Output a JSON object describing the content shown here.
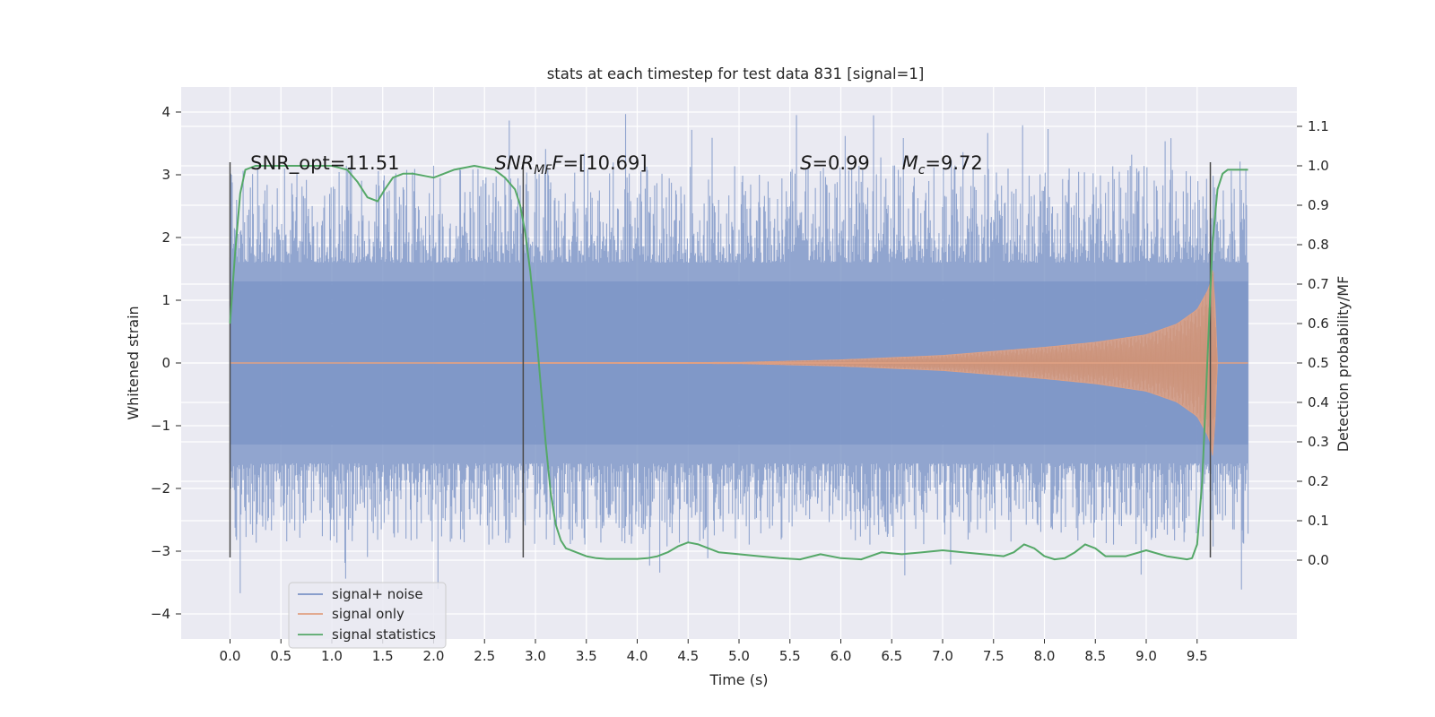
{
  "chart_data": {
    "type": "line",
    "title": "stats at each timestep for test data 831 [signal=1]",
    "xlabel": "Time (s)",
    "ylabel": "Whitened strain",
    "y2label": "Detection probability/MF",
    "xlim": [
      -0.48,
      10.48
    ],
    "ylim": [
      -4.4,
      4.4
    ],
    "y2lim": [
      -0.2,
      1.2
    ],
    "xticks": [
      "0.0",
      "0.5",
      "1.0",
      "1.5",
      "2.0",
      "2.5",
      "3.0",
      "3.5",
      "4.0",
      "4.5",
      "5.0",
      "5.5",
      "6.0",
      "6.5",
      "7.0",
      "7.5",
      "8.0",
      "8.5",
      "9.0",
      "9.5"
    ],
    "xtick_values": [
      0.0,
      0.5,
      1.0,
      1.5,
      2.0,
      2.5,
      3.0,
      3.5,
      4.0,
      4.5,
      5.0,
      5.5,
      6.0,
      6.5,
      7.0,
      7.5,
      8.0,
      8.5,
      9.0,
      9.5
    ],
    "yticks": [
      "4",
      "3",
      "2",
      "1",
      "0",
      "−1",
      "−2",
      "−3",
      "−4"
    ],
    "ytick_values": [
      4,
      3,
      2,
      1,
      0,
      -1,
      -2,
      -3,
      -4
    ],
    "y2ticks": [
      "1.1",
      "1.0",
      "0.9",
      "0.8",
      "0.7",
      "0.6",
      "0.5",
      "0.4",
      "0.3",
      "0.2",
      "0.1",
      "0.0"
    ],
    "y2tick_values": [
      1.1,
      1.0,
      0.9,
      0.8,
      0.7,
      0.6,
      0.5,
      0.4,
      0.3,
      0.2,
      0.1,
      0.0
    ],
    "grid": true,
    "legend_position": "bottom-left",
    "series": [
      {
        "name": "signal+ noise",
        "color": "#7b93c6",
        "kind": "dense noise trace",
        "x_range": [
          0.0,
          10.0
        ],
        "core_amplitude": 1.3,
        "peak_range": [
          -3.8,
          4.05
        ]
      },
      {
        "name": "signal only",
        "color": "#e1a183",
        "kind": "chirp",
        "x_range": [
          0.0,
          9.7
        ],
        "amplitude_envelope": [
          [
            0.0,
            0.0
          ],
          [
            5.0,
            0.01
          ],
          [
            6.0,
            0.05
          ],
          [
            7.0,
            0.12
          ],
          [
            8.0,
            0.25
          ],
          [
            8.5,
            0.33
          ],
          [
            9.0,
            0.45
          ],
          [
            9.3,
            0.62
          ],
          [
            9.5,
            0.85
          ],
          [
            9.62,
            1.2
          ],
          [
            9.66,
            1.55
          ],
          [
            9.7,
            0.0
          ]
        ]
      },
      {
        "name": "signal statistics",
        "color": "#55a868",
        "axis": "right",
        "x": [
          0.0,
          0.05,
          0.1,
          0.15,
          0.25,
          0.5,
          0.8,
          1.0,
          1.15,
          1.25,
          1.35,
          1.45,
          1.52,
          1.6,
          1.7,
          1.8,
          2.0,
          2.2,
          2.4,
          2.6,
          2.7,
          2.8,
          2.85,
          2.9,
          2.95,
          3.0,
          3.05,
          3.1,
          3.15,
          3.2,
          3.25,
          3.3,
          3.4,
          3.5,
          3.6,
          3.7,
          3.8,
          3.9,
          4.0,
          4.1,
          4.2,
          4.3,
          4.4,
          4.5,
          4.6,
          4.7,
          4.8,
          5.0,
          5.2,
          5.4,
          5.6,
          5.8,
          6.0,
          6.2,
          6.4,
          6.6,
          6.8,
          7.0,
          7.2,
          7.4,
          7.6,
          7.7,
          7.8,
          7.9,
          8.0,
          8.1,
          8.2,
          8.3,
          8.4,
          8.5,
          8.6,
          8.8,
          9.0,
          9.2,
          9.4,
          9.45,
          9.5,
          9.55,
          9.6,
          9.65,
          9.7,
          9.75,
          9.8,
          9.9,
          10.0
        ],
        "y": [
          0.6,
          0.78,
          0.93,
          0.99,
          1.0,
          1.0,
          1.0,
          1.0,
          0.99,
          0.96,
          0.92,
          0.91,
          0.94,
          0.97,
          0.98,
          0.98,
          0.97,
          0.99,
          1.0,
          0.99,
          0.97,
          0.94,
          0.9,
          0.83,
          0.73,
          0.6,
          0.45,
          0.3,
          0.17,
          0.09,
          0.05,
          0.03,
          0.02,
          0.01,
          0.005,
          0.003,
          0.003,
          0.003,
          0.003,
          0.005,
          0.01,
          0.02,
          0.035,
          0.045,
          0.04,
          0.03,
          0.02,
          0.015,
          0.01,
          0.005,
          0.002,
          0.015,
          0.005,
          0.002,
          0.02,
          0.015,
          0.02,
          0.025,
          0.02,
          0.015,
          0.01,
          0.02,
          0.04,
          0.03,
          0.01,
          0.002,
          0.005,
          0.02,
          0.04,
          0.03,
          0.01,
          0.01,
          0.025,
          0.01,
          0.002,
          0.005,
          0.04,
          0.2,
          0.5,
          0.8,
          0.94,
          0.98,
          0.99,
          0.99,
          0.99
        ]
      }
    ],
    "vertical_markers": [
      {
        "x": 0.0,
        "y_range": [
          -3.1,
          3.2
        ]
      },
      {
        "x": 2.88,
        "y_range": [
          -3.1,
          3.2
        ]
      },
      {
        "x": 9.63,
        "y_range": [
          -3.1,
          3.2
        ]
      }
    ],
    "annotations": [
      {
        "text": "SNR_opt=11.51",
        "x": 0.2,
        "y": 3.2
      },
      {
        "text_base": "SNR",
        "text_sub": "MF",
        "text_rest": "F=[10.69]",
        "x": 2.6,
        "y": 3.2
      },
      {
        "text_base": "S",
        "text_rest": "=0.99",
        "x": 5.6,
        "y": 3.2
      },
      {
        "text_base": "M",
        "text_sub": "c",
        "text_rest": "=9.72",
        "x": 6.6,
        "y": 3.2
      }
    ]
  }
}
